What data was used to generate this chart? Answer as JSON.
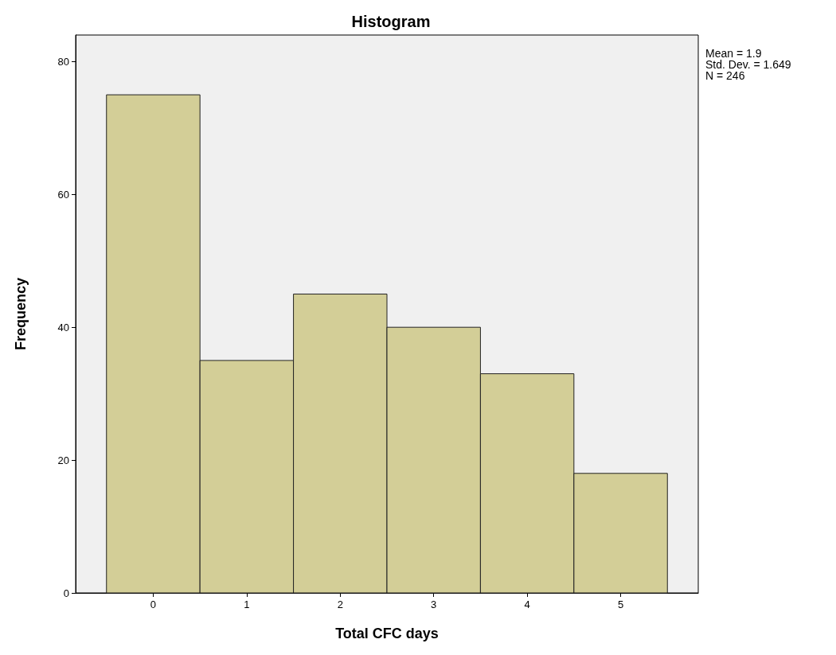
{
  "chart_data": {
    "type": "histogram",
    "title": "Histogram",
    "xlabel": "Total CFC days",
    "ylabel": "Frequency",
    "bins": [
      -0.5,
      0.5,
      1.5,
      2.5,
      3.5,
      4.5,
      5.5
    ],
    "values": [
      75,
      35,
      45,
      40,
      33,
      18
    ],
    "color": "#d3ce97",
    "xlim": [
      -0.83,
      5.83
    ],
    "xticks": [
      0,
      1,
      2,
      3,
      4,
      5
    ],
    "ylim": [
      0,
      84
    ],
    "yticks": [
      0,
      20,
      40,
      60,
      80
    ],
    "grid": false,
    "annotations": [
      "Mean = 1.9",
      "Std. Dev. = 1.649",
      "N = 246"
    ]
  }
}
